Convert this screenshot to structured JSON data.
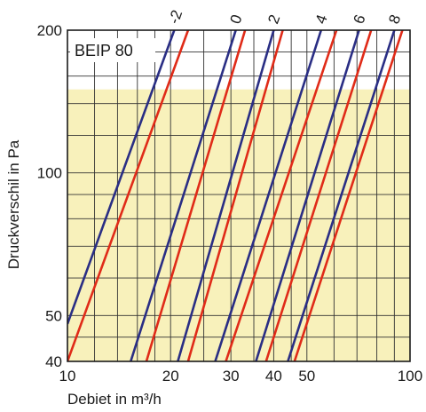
{
  "chart_data": {
    "type": "line",
    "title": "BEIP 80",
    "xlabel": "Debiet in m³/h",
    "ylabel": "Druckverschil in Pa",
    "x_scale": "log",
    "y_scale": "log",
    "xlim": [
      10,
      100
    ],
    "ylim": [
      40,
      200
    ],
    "x_ticks": [
      10,
      20,
      30,
      40,
      50,
      100
    ],
    "x_tick_labels": [
      "10",
      "20",
      "30",
      "40",
      "50",
      "100"
    ],
    "y_ticks": [
      40,
      50,
      100,
      200
    ],
    "y_tick_labels": [
      "40",
      "50",
      "100",
      "200"
    ],
    "x_minor_grid": [
      10,
      12,
      14,
      16,
      18,
      20,
      25,
      30,
      35,
      40,
      45,
      50,
      60,
      70,
      80,
      90,
      100
    ],
    "y_minor_grid": [
      40,
      45,
      50,
      60,
      70,
      80,
      90,
      100,
      120,
      140,
      160,
      180,
      200
    ],
    "shaded_region_y_max": 150,
    "shaded_color": "#f8f1bb",
    "grid": true,
    "curve_labels": [
      "-2",
      "0",
      "2",
      "4",
      "6",
      "8"
    ],
    "colors": {
      "blue": "#2a2e84",
      "red": "#e02b18",
      "grid": "#333333"
    },
    "series": [
      {
        "label": "-2",
        "pair": [
          {
            "color": "blue",
            "points": [
              [
                10.0,
                48
              ],
              [
                20.5,
                200
              ]
            ]
          },
          {
            "color": "red",
            "points": [
              [
                10.0,
                40
              ],
              [
                22.5,
                200
              ]
            ]
          }
        ]
      },
      {
        "label": "0",
        "pair": [
          {
            "color": "blue",
            "points": [
              [
                15.3,
                40
              ],
              [
                31.0,
                200
              ]
            ]
          },
          {
            "color": "red",
            "points": [
              [
                17.0,
                40
              ],
              [
                33.0,
                200
              ]
            ]
          }
        ]
      },
      {
        "label": "2",
        "pair": [
          {
            "color": "blue",
            "points": [
              [
                21.0,
                40
              ],
              [
                40.0,
                200
              ]
            ]
          },
          {
            "color": "red",
            "points": [
              [
                22.5,
                40
              ],
              [
                42.5,
                200
              ]
            ]
          }
        ]
      },
      {
        "label": "4",
        "pair": [
          {
            "color": "blue",
            "points": [
              [
                27.0,
                40
              ],
              [
                55.0,
                200
              ]
            ]
          },
          {
            "color": "red",
            "points": [
              [
                29.0,
                40
              ],
              [
                61.0,
                200
              ]
            ]
          }
        ]
      },
      {
        "label": "6",
        "pair": [
          {
            "color": "blue",
            "points": [
              [
                35.5,
                40
              ],
              [
                71.0,
                200
              ]
            ]
          },
          {
            "color": "red",
            "points": [
              [
                38.0,
                40
              ],
              [
                77.0,
                200
              ]
            ]
          }
        ]
      },
      {
        "label": "8",
        "pair": [
          {
            "color": "blue",
            "points": [
              [
                44.0,
                40
              ],
              [
                90.0,
                200
              ]
            ]
          },
          {
            "color": "red",
            "points": [
              [
                46.0,
                40
              ],
              [
                95.0,
                200
              ]
            ]
          }
        ]
      }
    ]
  }
}
